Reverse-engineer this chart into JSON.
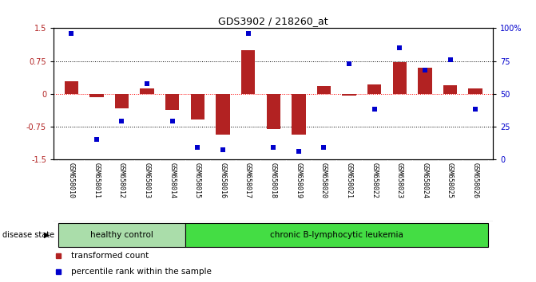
{
  "title": "GDS3902 / 218260_at",
  "samples": [
    "GSM658010",
    "GSM658011",
    "GSM658012",
    "GSM658013",
    "GSM658014",
    "GSM658015",
    "GSM658016",
    "GSM658017",
    "GSM658018",
    "GSM658019",
    "GSM658020",
    "GSM658021",
    "GSM658022",
    "GSM658023",
    "GSM658024",
    "GSM658025",
    "GSM658026"
  ],
  "transformed_count": [
    0.28,
    -0.07,
    -0.33,
    0.12,
    -0.37,
    -0.58,
    -0.93,
    1.0,
    -0.8,
    -0.93,
    0.18,
    -0.05,
    0.22,
    0.72,
    0.6,
    0.2,
    0.13
  ],
  "percentile_rank": [
    96,
    15,
    29,
    58,
    29,
    9,
    7,
    96,
    9,
    6,
    9,
    73,
    38,
    85,
    68,
    76,
    38
  ],
  "bar_color": "#b22222",
  "dot_color": "#0000cc",
  "ylim_left": [
    -1.5,
    1.5
  ],
  "ylim_right": [
    0,
    100
  ],
  "yticks_left": [
    -1.5,
    -0.75,
    0.0,
    0.75,
    1.5
  ],
  "ytick_labels_left": [
    "-1.5",
    "-0.75",
    "0",
    "0.75",
    "1.5"
  ],
  "yticks_right": [
    0,
    25,
    50,
    75,
    100
  ],
  "ytick_labels_right": [
    "0",
    "25",
    "50",
    "75",
    "100%"
  ],
  "hlines": [
    0.75,
    0.0,
    -0.75
  ],
  "hline_colors": [
    "black",
    "red",
    "black"
  ],
  "hline_styles": [
    "dotted",
    "dotted",
    "dotted"
  ],
  "healthy_control_count": 5,
  "leukemia_count": 12,
  "group1_label": "healthy control",
  "group1_color": "#aaddaa",
  "group2_label": "chronic B-lymphocytic leukemia",
  "group2_color": "#44dd44",
  "disease_state_label": "disease state",
  "legend_bar_label": "transformed count",
  "legend_dot_label": "percentile rank within the sample",
  "background_color": "#ffffff",
  "tick_area_color": "#cccccc",
  "bar_width": 0.55
}
